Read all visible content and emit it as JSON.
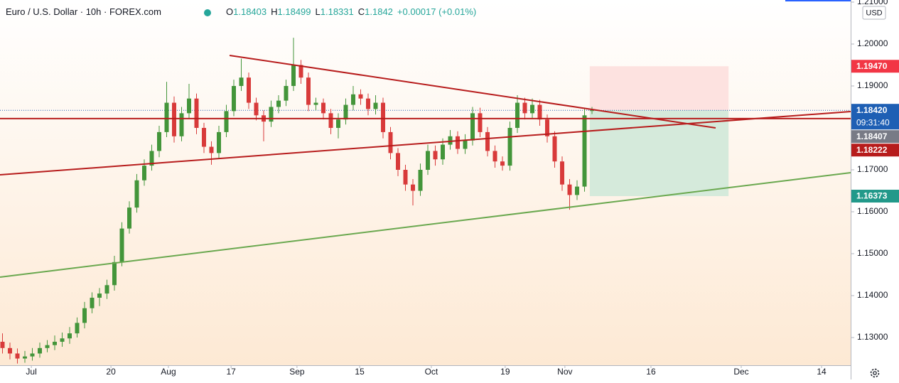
{
  "chart_data": {
    "type": "candlestick",
    "header": {
      "symbol": "Euro / U.S. Dollar · 10h · FOREX.com",
      "ohlc": [
        {
          "key": "O",
          "value": 1.18403
        },
        {
          "key": "H",
          "value": 1.18499
        },
        {
          "key": "L",
          "value": 1.18331
        },
        {
          "key": "C",
          "value": 1.1842
        }
      ],
      "change": "+0.00017 (+0.01%)"
    },
    "currency": "USD",
    "xlim": [
      0,
      342
    ],
    "ylim": [
      1.1234,
      1.2105
    ],
    "xticks": [
      {
        "value": 12.6,
        "label": "Jul"
      },
      {
        "value": 44.6,
        "label": "20"
      },
      {
        "value": 67.7,
        "label": "Aug"
      },
      {
        "value": 92.9,
        "label": "17"
      },
      {
        "value": 119.4,
        "label": "Sep"
      },
      {
        "value": 144.6,
        "label": "15"
      },
      {
        "value": 173.4,
        "label": "Oct"
      },
      {
        "value": 203.1,
        "label": "19"
      },
      {
        "value": 227.1,
        "label": "Nov"
      },
      {
        "value": 261.7,
        "label": "16"
      },
      {
        "value": 298,
        "label": "Dec"
      },
      {
        "value": 330.3,
        "label": "14"
      }
    ],
    "yticks": [
      {
        "value": 1.21,
        "label": "1.21000"
      },
      {
        "value": 1.2,
        "label": "1.20000"
      },
      {
        "value": 1.19,
        "label": "1.19000"
      },
      {
        "value": 1.17,
        "label": "1.17000"
      },
      {
        "value": 1.16,
        "label": "1.16000"
      },
      {
        "value": 1.15,
        "label": "1.15000"
      },
      {
        "value": 1.14,
        "label": "1.14000"
      },
      {
        "value": 1.13,
        "label": "1.13000"
      }
    ],
    "up_color": "#43953a",
    "down_color": "#d83a3a",
    "x": [
      1,
      4,
      7,
      10,
      13,
      16,
      19,
      22,
      25,
      28,
      31,
      34,
      37,
      40,
      43,
      46,
      49,
      52,
      55,
      58,
      61,
      64,
      67,
      70,
      73,
      76,
      79,
      82,
      85,
      88,
      91,
      94,
      97,
      100,
      103,
      106,
      109,
      112,
      115,
      118,
      121,
      124,
      127,
      130,
      133,
      136,
      139,
      142,
      145,
      148,
      151,
      154,
      157,
      160,
      163,
      166,
      169,
      172,
      175,
      178,
      181,
      184,
      187,
      190,
      193,
      196,
      199,
      202,
      205,
      208,
      211,
      214,
      217,
      220,
      223,
      226,
      229,
      232,
      235,
      238
    ],
    "ohlc": [
      [
        1.129,
        1.131,
        1.1262,
        1.1275
      ],
      [
        1.1275,
        1.1288,
        1.1248,
        1.1262
      ],
      [
        1.1262,
        1.1274,
        1.1238,
        1.125
      ],
      [
        1.125,
        1.1268,
        1.124,
        1.1255
      ],
      [
        1.1255,
        1.1275,
        1.1245,
        1.1262
      ],
      [
        1.1262,
        1.1288,
        1.1252,
        1.1275
      ],
      [
        1.1275,
        1.1294,
        1.1265,
        1.1282
      ],
      [
        1.1282,
        1.1305,
        1.127,
        1.129
      ],
      [
        1.129,
        1.1312,
        1.1278,
        1.1298
      ],
      [
        1.1298,
        1.1325,
        1.1285,
        1.131
      ],
      [
        1.131,
        1.1348,
        1.13,
        1.1335
      ],
      [
        1.1335,
        1.1385,
        1.1322,
        1.137
      ],
      [
        1.137,
        1.1408,
        1.1358,
        1.1395
      ],
      [
        1.1395,
        1.1418,
        1.1375,
        1.1405
      ],
      [
        1.1405,
        1.1438,
        1.1392,
        1.1425
      ],
      [
        1.1425,
        1.1495,
        1.1412,
        1.148
      ],
      [
        1.148,
        1.1575,
        1.147,
        1.156
      ],
      [
        1.156,
        1.1625,
        1.1548,
        1.161
      ],
      [
        1.161,
        1.169,
        1.1598,
        1.1675
      ],
      [
        1.1675,
        1.1725,
        1.1662,
        1.171
      ],
      [
        1.171,
        1.176,
        1.1698,
        1.1745
      ],
      [
        1.1745,
        1.1805,
        1.173,
        1.179
      ],
      [
        1.179,
        1.191,
        1.1778,
        1.186
      ],
      [
        1.186,
        1.1875,
        1.1765,
        1.178
      ],
      [
        1.178,
        1.185,
        1.1768,
        1.1835
      ],
      [
        1.1835,
        1.1905,
        1.1822,
        1.187
      ],
      [
        1.187,
        1.1882,
        1.1785,
        1.18
      ],
      [
        1.18,
        1.1812,
        1.174,
        1.1755
      ],
      [
        1.1755,
        1.1768,
        1.1712,
        1.174
      ],
      [
        1.174,
        1.1805,
        1.1728,
        1.179
      ],
      [
        1.179,
        1.1855,
        1.1778,
        1.184
      ],
      [
        1.184,
        1.1915,
        1.1828,
        1.19
      ],
      [
        1.19,
        1.1965,
        1.1888,
        1.192
      ],
      [
        1.192,
        1.1932,
        1.1845,
        1.186
      ],
      [
        1.186,
        1.1872,
        1.1818,
        1.183
      ],
      [
        1.183,
        1.1842,
        1.1768,
        1.1815
      ],
      [
        1.1815,
        1.1865,
        1.1802,
        1.185
      ],
      [
        1.185,
        1.1878,
        1.1835,
        1.1865
      ],
      [
        1.1865,
        1.1915,
        1.1852,
        1.19
      ],
      [
        1.19,
        1.2015,
        1.1888,
        1.195
      ],
      [
        1.195,
        1.1962,
        1.1905,
        1.192
      ],
      [
        1.192,
        1.1932,
        1.184,
        1.1855
      ],
      [
        1.1855,
        1.1872,
        1.1842,
        1.186
      ],
      [
        1.186,
        1.187,
        1.182,
        1.1835
      ],
      [
        1.1835,
        1.1845,
        1.1785,
        1.18
      ],
      [
        1.18,
        1.1835,
        1.1775,
        1.182
      ],
      [
        1.182,
        1.187,
        1.1808,
        1.1855
      ],
      [
        1.1855,
        1.19,
        1.1842,
        1.188
      ],
      [
        1.188,
        1.1892,
        1.1855,
        1.187
      ],
      [
        1.187,
        1.1882,
        1.183,
        1.1845
      ],
      [
        1.1845,
        1.1878,
        1.1832,
        1.186
      ],
      [
        1.186,
        1.1872,
        1.1775,
        1.179
      ],
      [
        1.179,
        1.1802,
        1.1725,
        1.174
      ],
      [
        1.174,
        1.1752,
        1.1685,
        1.17
      ],
      [
        1.17,
        1.1712,
        1.165,
        1.1665
      ],
      [
        1.1665,
        1.1678,
        1.1615,
        1.165
      ],
      [
        1.165,
        1.1715,
        1.1638,
        1.17
      ],
      [
        1.17,
        1.176,
        1.1688,
        1.1745
      ],
      [
        1.1745,
        1.1758,
        1.171,
        1.1725
      ],
      [
        1.1725,
        1.1775,
        1.1712,
        1.176
      ],
      [
        1.176,
        1.1795,
        1.1748,
        1.178
      ],
      [
        1.178,
        1.1792,
        1.1738,
        1.175
      ],
      [
        1.175,
        1.1785,
        1.1738,
        1.177
      ],
      [
        1.177,
        1.185,
        1.1758,
        1.1835
      ],
      [
        1.1835,
        1.1848,
        1.1778,
        1.179
      ],
      [
        1.179,
        1.1802,
        1.1732,
        1.1745
      ],
      [
        1.1745,
        1.1758,
        1.1705,
        1.172
      ],
      [
        1.172,
        1.1732,
        1.1698,
        1.171
      ],
      [
        1.171,
        1.1815,
        1.1698,
        1.18
      ],
      [
        1.18,
        1.1878,
        1.1788,
        1.186
      ],
      [
        1.186,
        1.1872,
        1.182,
        1.1835
      ],
      [
        1.1835,
        1.187,
        1.1822,
        1.1855
      ],
      [
        1.1855,
        1.1867,
        1.1805,
        1.182
      ],
      [
        1.182,
        1.1832,
        1.1765,
        1.178
      ],
      [
        1.178,
        1.1792,
        1.1705,
        1.172
      ],
      [
        1.172,
        1.1732,
        1.165,
        1.1665
      ],
      [
        1.1665,
        1.1678,
        1.1605,
        1.164
      ],
      [
        1.164,
        1.1675,
        1.1628,
        1.166
      ],
      [
        1.166,
        1.1845,
        1.1648,
        1.183
      ],
      [
        1.18403,
        1.18499,
        1.18331,
        1.1842
      ]
    ],
    "drawings": [
      {
        "color": "#b71c1c",
        "x": [
          92.3,
          287.7
        ],
        "y": [
          1.19729,
          1.18
        ]
      },
      {
        "color": "#b71c1c",
        "x": [
          0,
          342
        ],
        "y": [
          1.18222,
          1.18222
        ]
      },
      {
        "color": "#b71c1c",
        "x": [
          0,
          342
        ],
        "y": [
          1.16881,
          1.1839
        ]
      },
      {
        "color": "#6aa84f",
        "x": [
          0,
          342
        ],
        "y": [
          1.14441,
          1.16932
        ]
      }
    ],
    "position": {
      "x": [
        237.1,
        292.9
      ],
      "entry": 1.1842,
      "stop": 1.1947,
      "target": 1.16373,
      "stop_color": "#fde2e0",
      "target_color": "#d5eadb"
    },
    "price_labels": [
      {
        "value": 1.1947,
        "label": "1.19470",
        "color": "#f23645"
      },
      {
        "value": 1.1842,
        "label": "1.18420",
        "color": "#1e5fb4",
        "sub": "09:31:40"
      },
      {
        "value": 1.18407,
        "label": "1.18407",
        "color": "#787b86"
      },
      {
        "value": 1.18222,
        "label": "1.18222",
        "color": "#b71c1c"
      },
      {
        "value": 1.16373,
        "label": "1.16373",
        "color": "#22998a"
      }
    ]
  }
}
